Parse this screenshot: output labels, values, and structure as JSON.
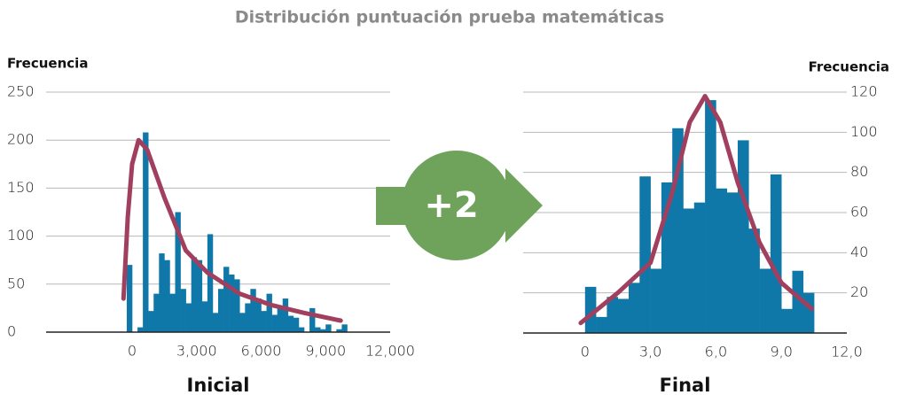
{
  "title": "Distribución puntuación prueba matemáticas",
  "annotation": "+2",
  "chart_data": [
    {
      "type": "histogram",
      "ylabel": "Frecuencia",
      "xlabel": "Inicial",
      "color": "#0f78a8",
      "yaxis_side": "left",
      "bins": [
        -250,
        0,
        250,
        500,
        750,
        1000,
        1250,
        1500,
        1750,
        2000,
        2250,
        2500,
        2750,
        3000,
        3250,
        3500,
        3750,
        4000,
        4250,
        4500,
        4750,
        5000,
        5250,
        5500,
        5750,
        6000,
        6250,
        6500,
        6750,
        7000,
        7250,
        7500,
        7750,
        8000,
        8250,
        8500,
        8750,
        9000,
        9250,
        9500,
        9750,
        10000
      ],
      "values": [
        70,
        0,
        5,
        208,
        22,
        40,
        82,
        75,
        40,
        125,
        45,
        30,
        78,
        75,
        32,
        102,
        20,
        45,
        68,
        60,
        55,
        20,
        30,
        45,
        35,
        22,
        40,
        18,
        25,
        35,
        17,
        15,
        5,
        0,
        25,
        5,
        3,
        8,
        0,
        3,
        8
      ],
      "curve": {
        "color": "#a0405e",
        "x": [
          -400,
          -200,
          0,
          300,
          700,
          1500,
          2500,
          3500,
          5000,
          6500,
          8000,
          9700
        ],
        "y": [
          35,
          120,
          175,
          200,
          190,
          140,
          85,
          62,
          40,
          28,
          20,
          12
        ]
      },
      "xlim": [
        -4000,
        12000
      ],
      "ylim": [
        0,
        250
      ],
      "xticks": [
        0,
        {
          "value": 3000,
          "label": "3,000"
        },
        {
          "value": 6000,
          "label": "6,000"
        },
        {
          "value": 9000,
          "label": "9,000"
        },
        {
          "value": 12000,
          "label": "12,000"
        }
      ],
      "yticks": [
        0,
        50,
        100,
        150,
        200,
        250
      ],
      "grid": true
    },
    {
      "type": "histogram",
      "ylabel": "Frecuencia",
      "xlabel": "Final",
      "color": "#0f78a8",
      "yaxis_side": "right",
      "bins": [
        0,
        0.5,
        1,
        1.5,
        2,
        2.5,
        3,
        3.5,
        4,
        4.5,
        5,
        5.5,
        6,
        6.5,
        7,
        7.5,
        8,
        8.5,
        9,
        9.5,
        10,
        10.5
      ],
      "values": [
        23,
        8,
        18,
        17,
        25,
        78,
        32,
        75,
        102,
        62,
        65,
        116,
        72,
        70,
        96,
        52,
        32,
        79,
        12,
        31,
        20
      ],
      "curve": {
        "color": "#a0405e",
        "x": [
          -0.2,
          1.5,
          3,
          4,
          4.8,
          5.5,
          6.2,
          7,
          8,
          9,
          10.4
        ],
        "y": [
          5,
          20,
          35,
          70,
          105,
          118,
          105,
          75,
          45,
          25,
          12
        ]
      },
      "xlim": [
        -3,
        12
      ],
      "ylim": [
        0,
        120
      ],
      "xticks": [
        0,
        {
          "value": 3,
          "label": "3,0"
        },
        {
          "value": 6,
          "label": "6,0"
        },
        {
          "value": 9,
          "label": "9,0"
        },
        {
          "value": 12,
          "label": "12,0"
        }
      ],
      "yticks": [
        20,
        40,
        60,
        80,
        100,
        120
      ],
      "grid": true
    }
  ]
}
